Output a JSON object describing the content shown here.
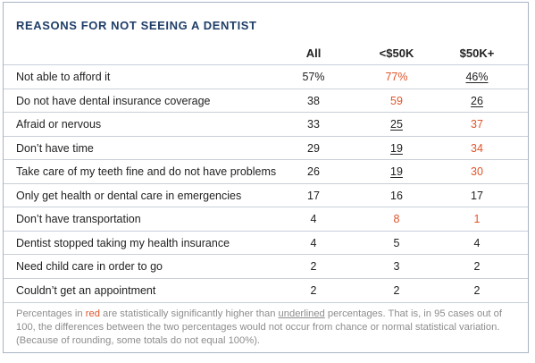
{
  "title": "REASONS FOR NOT SEEING A DENTIST",
  "columns": [
    "All",
    "<$50K",
    "$50K+"
  ],
  "colors": {
    "title": "#1f3e67",
    "highlight_red": "#e0542a",
    "footnote_gray": "#8d8d8d"
  },
  "rows": [
    {
      "label": "Not able to afford it",
      "all": "57%",
      "lt50": "77%",
      "gt50": "46%",
      "lt50_style": "red",
      "gt50_style": "underline"
    },
    {
      "label": "Do not have dental insurance coverage",
      "all": "38",
      "lt50": "59",
      "gt50": "26",
      "lt50_style": "red",
      "gt50_style": "underline"
    },
    {
      "label": "Afraid or nervous",
      "all": "33",
      "lt50": "25",
      "gt50": "37",
      "lt50_style": "underline",
      "gt50_style": "red"
    },
    {
      "label": "Don’t have time",
      "all": "29",
      "lt50": "19",
      "gt50": "34",
      "lt50_style": "underline",
      "gt50_style": "red"
    },
    {
      "label": "Take care of my teeth fine and do not have problems",
      "all": "26",
      "lt50": "19",
      "gt50": "30",
      "lt50_style": "underline",
      "gt50_style": "red"
    },
    {
      "label": "Only get health or dental care in emergencies",
      "all": "17",
      "lt50": "16",
      "gt50": "17",
      "lt50_style": "",
      "gt50_style": ""
    },
    {
      "label": "Don’t have transportation",
      "all": "4",
      "lt50": "8",
      "gt50": "1",
      "lt50_style": "red",
      "gt50_style": "red"
    },
    {
      "label": "Dentist stopped taking my health insurance",
      "all": "4",
      "lt50": "5",
      "gt50": "4",
      "lt50_style": "",
      "gt50_style": ""
    },
    {
      "label": "Need child care in order to go",
      "all": "2",
      "lt50": "3",
      "gt50": "2",
      "lt50_style": "",
      "gt50_style": ""
    },
    {
      "label": "Couldn’t get an appointment",
      "all": "2",
      "lt50": "2",
      "gt50": "2",
      "lt50_style": "",
      "gt50_style": ""
    }
  ],
  "footnote": {
    "part1": "Percentages in ",
    "red_word": "red",
    "part2": " are statistically significantly higher than ",
    "underlined_word": "underlined",
    "part3": " percentages. That is, in 95 cases out of 100, the differences between the two percentages would not occur from chance or normal statistical variation. (Because of rounding, some totals do not equal 100%)."
  }
}
